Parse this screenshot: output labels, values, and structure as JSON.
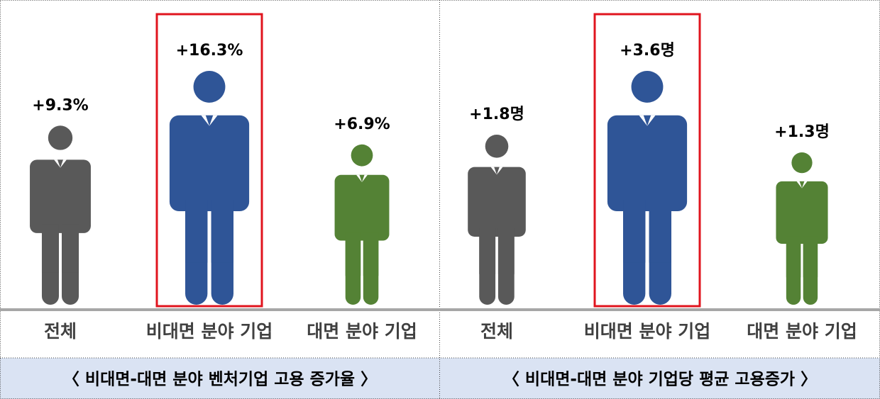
{
  "chart_data": [
    {
      "type": "pictogram",
      "categories": [
        "전체",
        "비대면 분야 기업",
        "대면 분야 기업"
      ],
      "values": [
        9.3,
        16.3,
        6.9
      ],
      "value_labels": [
        "+9.3%",
        "+16.3%",
        "+6.9%"
      ],
      "colors": [
        "#595959",
        "#2f5597",
        "#548235"
      ],
      "highlight": 1,
      "caption": "〈 비대면-대면 분야 벤처기업 고용 증가율 〉"
    },
    {
      "type": "pictogram",
      "categories": [
        "전체",
        "비대면 분야 기업",
        "대면 분야 기업"
      ],
      "values": [
        1.8,
        3.6,
        1.3
      ],
      "value_labels": [
        "+1.8명",
        "+3.6명",
        "+1.3명"
      ],
      "colors": [
        "#595959",
        "#2f5597",
        "#548235"
      ],
      "highlight": 1,
      "caption": "〈 비대면-대면 분야 기업당 평균 고용증가 〉"
    }
  ]
}
